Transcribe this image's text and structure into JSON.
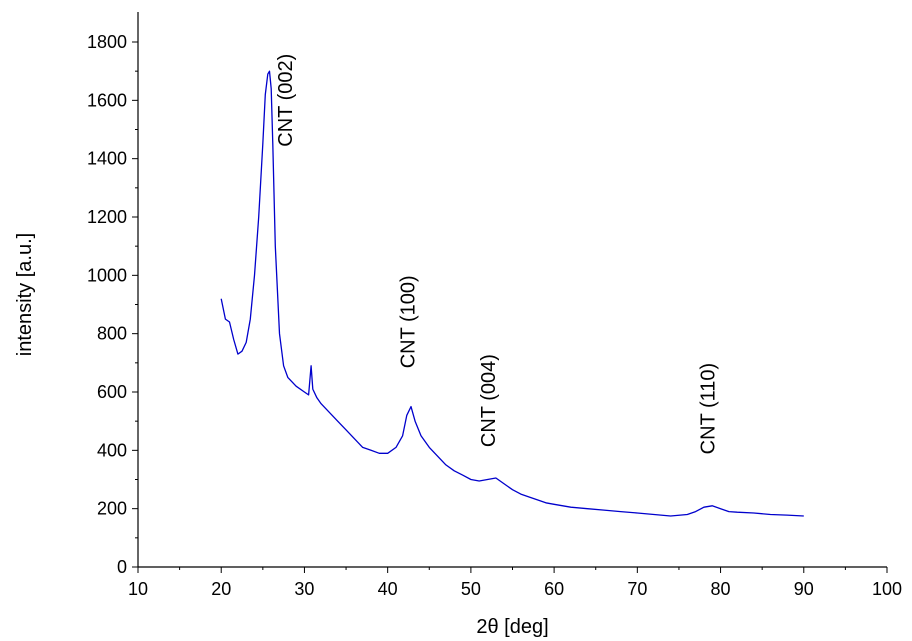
{
  "chart_data": {
    "type": "line",
    "title": "",
    "xlabel": "2θ [deg]",
    "ylabel": "intensity [a.u.]",
    "xlim": [
      10,
      100
    ],
    "ylim": [
      0,
      1850
    ],
    "xticks": [
      10,
      20,
      30,
      40,
      50,
      60,
      70,
      80,
      90,
      100
    ],
    "yticks": [
      0,
      200,
      400,
      600,
      800,
      1000,
      1200,
      1400,
      1600,
      1800
    ],
    "grid": false,
    "legend": "none",
    "line_color": "#0000cc",
    "series": [
      {
        "x": [
          20,
          20.5,
          21,
          21.5,
          22,
          22.5,
          23,
          23.5,
          24,
          24.5,
          25,
          25.3,
          25.6,
          25.8,
          26,
          26.2,
          26.5,
          27,
          27.5,
          28,
          29,
          30,
          30.5,
          30.8,
          31,
          31.5,
          32,
          33,
          34,
          35,
          36,
          37,
          38,
          39,
          40,
          41,
          41.8,
          42.3,
          42.8,
          43.3,
          44,
          45,
          46,
          47,
          48,
          49,
          50,
          51,
          52,
          53,
          54,
          55,
          56,
          57,
          58,
          59,
          60,
          62,
          64,
          66,
          68,
          70,
          72,
          74,
          76,
          77,
          78,
          79,
          80,
          81,
          82,
          84,
          86,
          88,
          90
        ],
        "y": [
          920,
          850,
          840,
          780,
          730,
          740,
          770,
          850,
          1000,
          1200,
          1450,
          1620,
          1690,
          1700,
          1640,
          1450,
          1100,
          800,
          690,
          650,
          620,
          600,
          590,
          690,
          610,
          580,
          560,
          530,
          500,
          470,
          440,
          410,
          400,
          390,
          390,
          410,
          450,
          520,
          550,
          500,
          450,
          410,
          380,
          350,
          330,
          315,
          300,
          295,
          300,
          305,
          285,
          265,
          250,
          240,
          230,
          220,
          215,
          205,
          200,
          195,
          190,
          185,
          180,
          175,
          180,
          190,
          205,
          210,
          200,
          190,
          188,
          185,
          180,
          178,
          175
        ]
      }
    ],
    "annotations": [
      {
        "text": "CNT (002)",
        "x": 28.5,
        "y": 1760
      },
      {
        "text": "CNT (100)",
        "x": 43.2,
        "y": 1000
      },
      {
        "text": "CNT (004)",
        "x": 52.9,
        "y": 730
      },
      {
        "text": "CNT (110)",
        "x": 79.3,
        "y": 700
      }
    ]
  }
}
